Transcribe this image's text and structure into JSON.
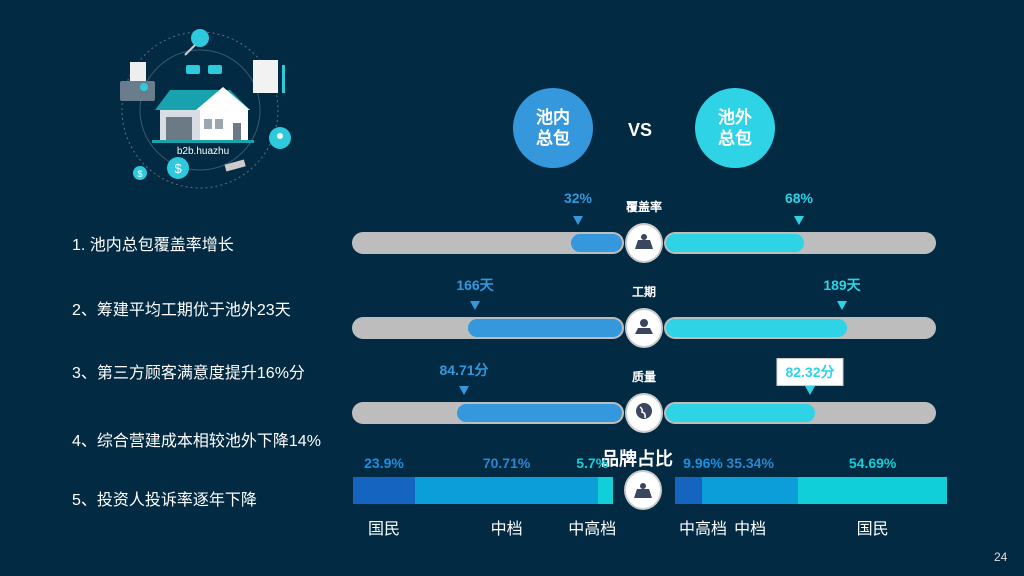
{
  "illustration": {
    "caption": "b2b.huazhu"
  },
  "header": {
    "left_bubble": "池内\n总包",
    "left_bubble_l1": "池内",
    "left_bubble_l2": "总包",
    "vs": "VS",
    "right_bubble_l1": "池外",
    "right_bubble_l2": "总包"
  },
  "list": [
    "1. 池内总包覆盖率增长",
    "2、筹建平均工期优于池外23天",
    "3、第三方顾客满意度提升16%分",
    "4、综合营建成本相较池外下降14%",
    "5、投资人投诉率逐年下降"
  ],
  "colors": {
    "background": "#022a42",
    "inner": "#3598dc",
    "outer": "#2ed3e6",
    "track": "#bdbdbd",
    "seg_dark": "#1565c0",
    "seg_mid": "#0b9ed8",
    "seg_cyan": "#10cfd8"
  },
  "chart_data": [
    {
      "type": "bar",
      "rows": [
        {
          "metric": "覆盖率",
          "icon": "map-icon",
          "left_label": "32%",
          "left_value": 32,
          "left_fill": 0.19,
          "right_label": "68%",
          "right_value": 68,
          "right_fill": 0.51
        },
        {
          "metric": "工期",
          "icon": "location-map-icon",
          "left_label": "166天",
          "left_value": 166,
          "left_fill": 0.57,
          "right_label": "189天",
          "right_value": 189,
          "right_fill": 0.67
        },
        {
          "metric": "质量",
          "icon": "globe-icon",
          "left_label": "84.71分",
          "left_value": 84.71,
          "left_fill": 0.61,
          "right_label": "82.32分",
          "right_value": 82.32,
          "right_fill": 0.55
        }
      ]
    },
    {
      "type": "bar",
      "stacked": true,
      "title": "品牌占比",
      "left": [
        {
          "category": "国民",
          "label": "23.9%",
          "value": 23.9,
          "color": "#1565c0"
        },
        {
          "category": "中档",
          "label": "70.71%",
          "value": 70.71,
          "color": "#0b9ed8"
        },
        {
          "category": "中高档",
          "label": "5.7%",
          "value": 5.7,
          "color": "#10cfd8"
        }
      ],
      "right": [
        {
          "category": "中高档",
          "label": "9.96%",
          "value": 9.96,
          "color": "#1565c0"
        },
        {
          "category": "中档",
          "label": "35.34%",
          "value": 35.34,
          "color": "#0b9ed8"
        },
        {
          "category": "国民",
          "label": "54.69%",
          "value": 54.69,
          "color": "#10cfd8"
        }
      ]
    }
  ],
  "page_number": "24"
}
